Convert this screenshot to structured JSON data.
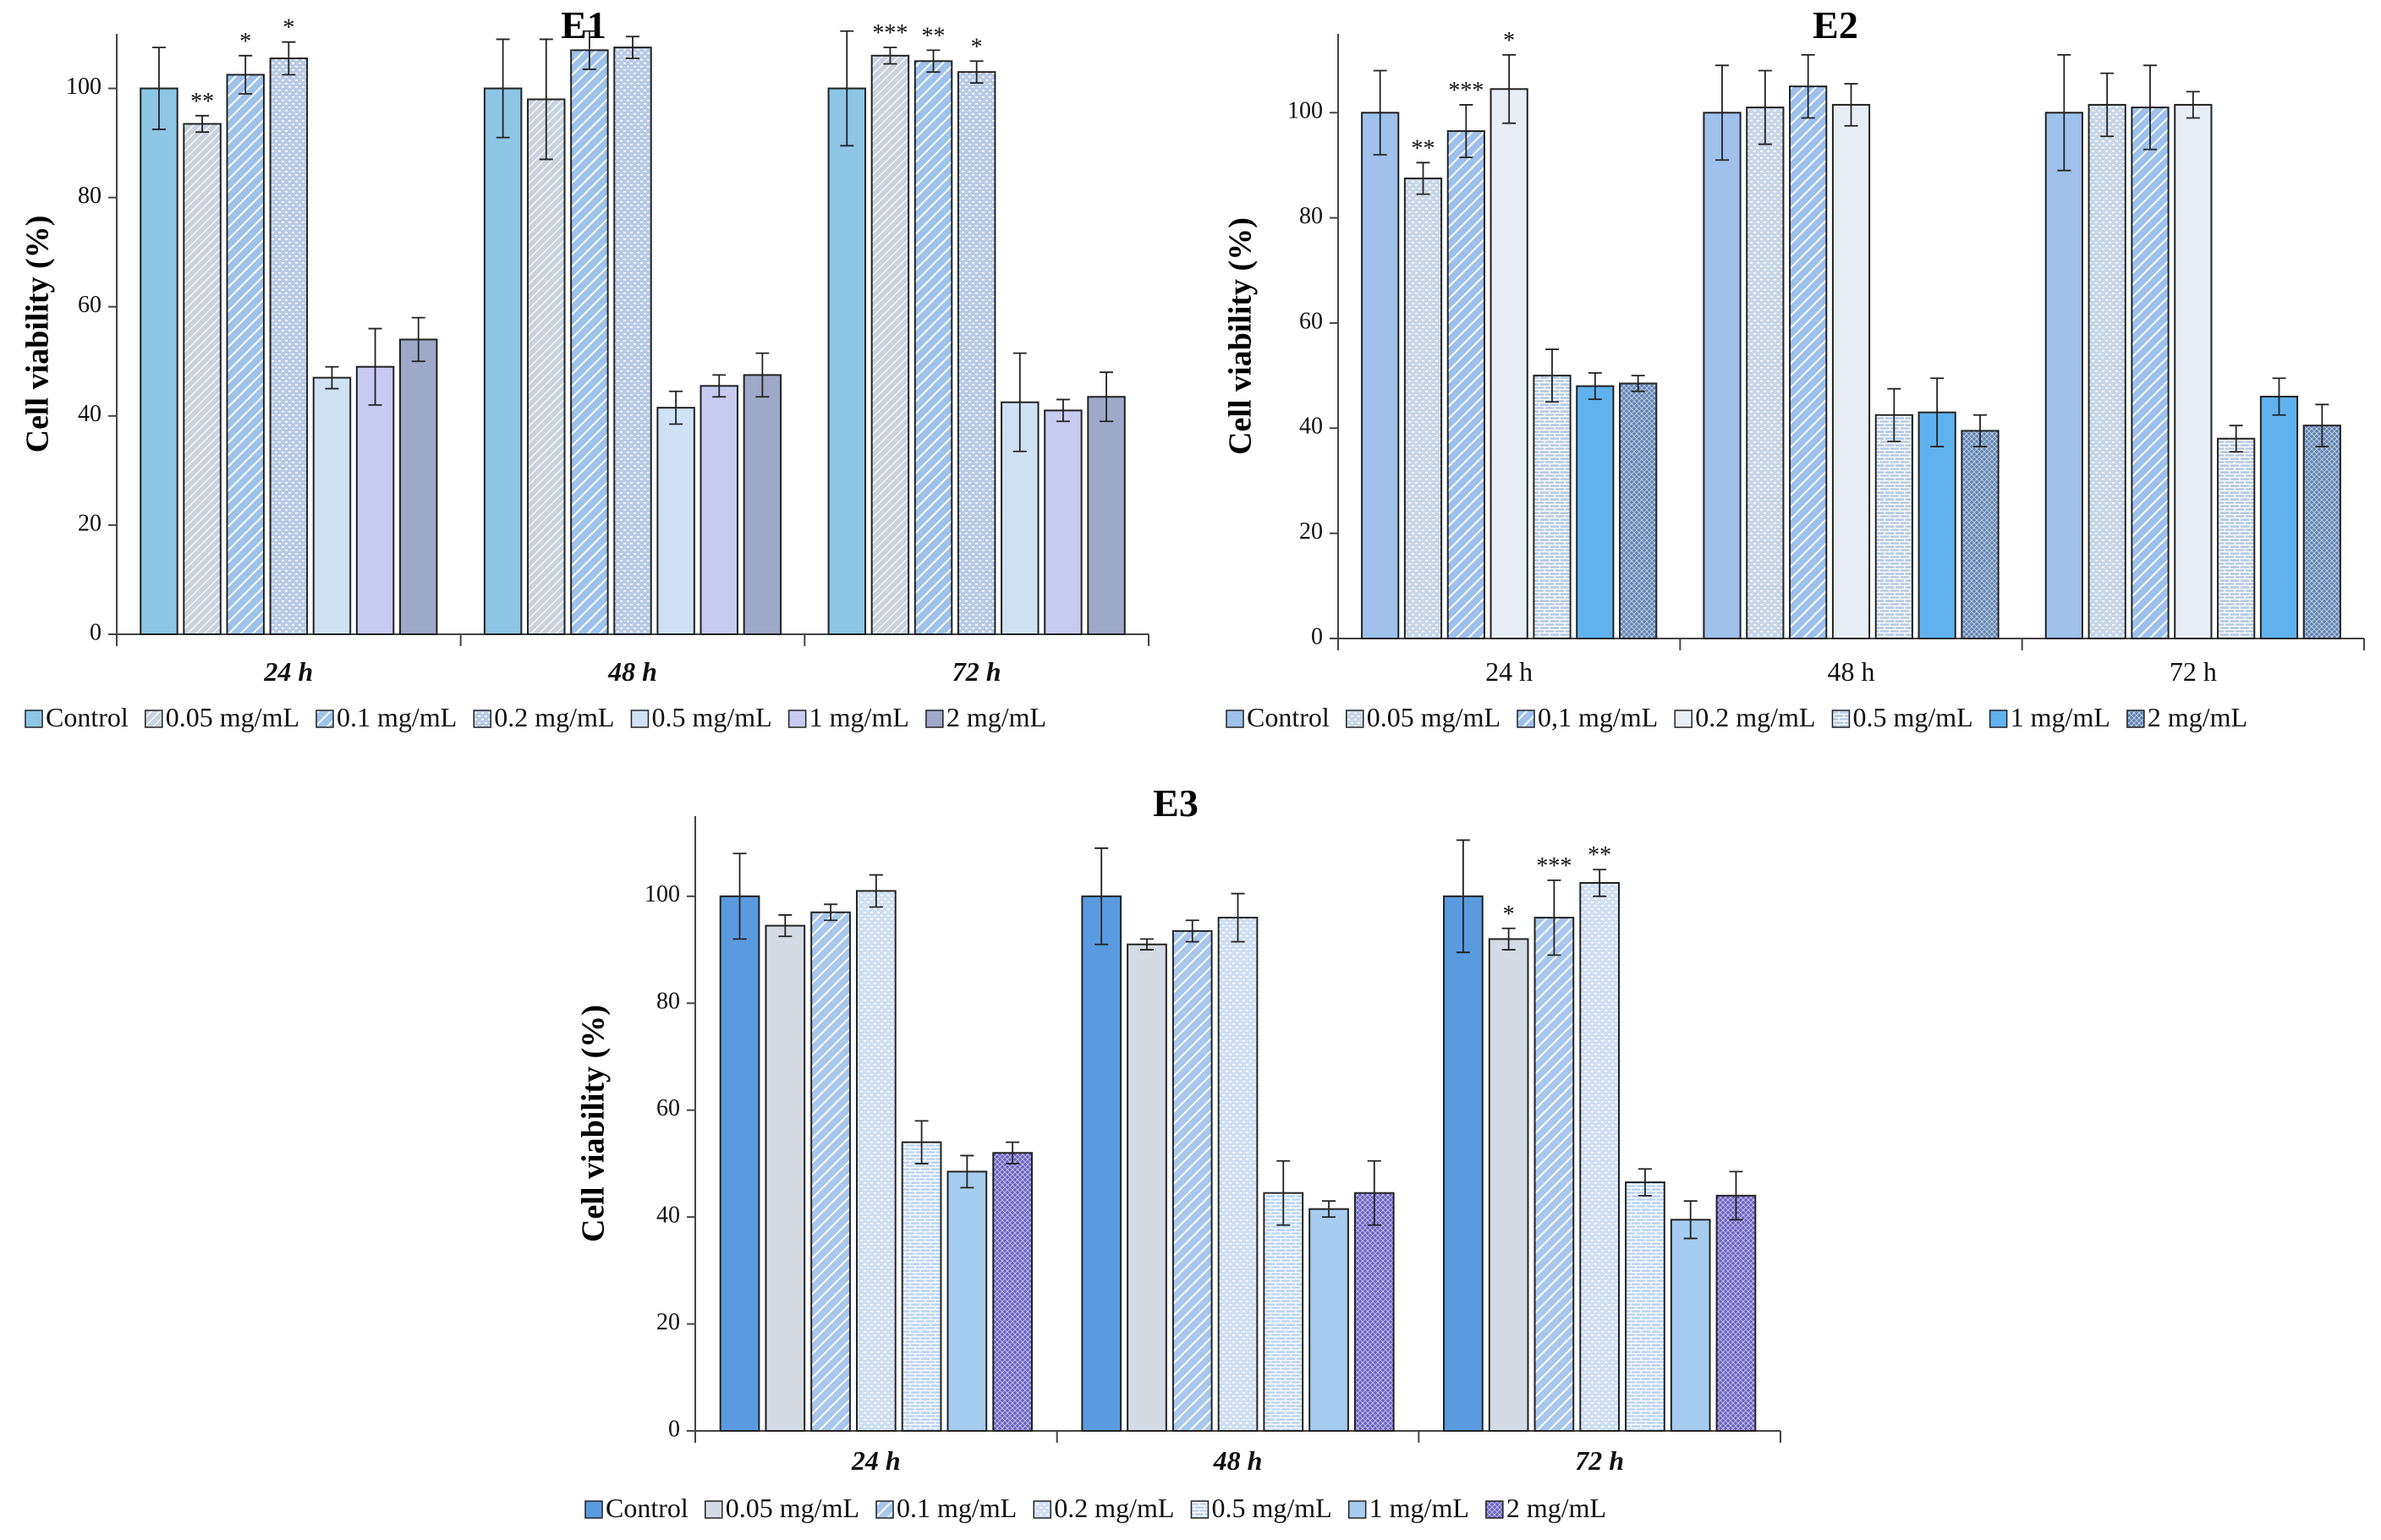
{
  "chart_data": [
    {
      "type": "bar",
      "title": "E1",
      "ylabel": "Cell viability (%)",
      "xlabel": "",
      "ylim": [
        0,
        110
      ],
      "yticks": [
        0,
        20,
        40,
        60,
        80,
        100
      ],
      "grid": false,
      "legend": "bottom",
      "italic_categories": true,
      "categories": [
        "24 h",
        "48 h",
        "72 h"
      ],
      "series": [
        {
          "name": "Control",
          "color": "#8ec6e6",
          "pattern": "solid",
          "values": [
            100,
            100,
            100
          ],
          "errors": [
            7.5,
            9,
            10.5
          ],
          "sig": [
            "",
            "",
            ""
          ]
        },
        {
          "name": "0.05 mg/mL",
          "color": "#c9d3df",
          "pattern": "diag",
          "values": [
            93.5,
            98,
            106
          ],
          "errors": [
            1.5,
            11,
            1.5
          ],
          "sig": [
            "**",
            "",
            "***"
          ]
        },
        {
          "name": "0.1 mg/mL",
          "color": "#9ec2ea",
          "pattern": "diag2",
          "values": [
            102.5,
            107,
            105
          ],
          "errors": [
            3.5,
            3.5,
            2
          ],
          "sig": [
            "*",
            "",
            "**"
          ]
        },
        {
          "name": "0.2 mg/mL",
          "color": "#b9cbe6",
          "pattern": "dots",
          "values": [
            105.5,
            107.5,
            103
          ],
          "errors": [
            3,
            2,
            2
          ],
          "sig": [
            "*",
            "",
            "*"
          ]
        },
        {
          "name": "0.5 mg/mL",
          "color": "#cfe2f5",
          "pattern": "solid",
          "values": [
            47,
            41.5,
            42.5
          ],
          "errors": [
            2,
            3,
            9
          ],
          "sig": [
            "",
            "",
            ""
          ]
        },
        {
          "name": "1 mg/mL",
          "color": "#c7cbf2",
          "pattern": "solid",
          "values": [
            49,
            45.5,
            41
          ],
          "errors": [
            7,
            2,
            2
          ],
          "sig": [
            "",
            "",
            ""
          ]
        },
        {
          "name": "2 mg/mL",
          "color": "#9ea8c8",
          "pattern": "solid",
          "values": [
            54,
            47.5,
            43.5
          ],
          "errors": [
            4,
            4,
            4.5
          ],
          "sig": [
            "",
            "",
            ""
          ]
        }
      ]
    },
    {
      "type": "bar",
      "title": "E2",
      "ylabel": "Cell viability (%)",
      "xlabel": "",
      "ylim": [
        0,
        115
      ],
      "yticks": [
        0,
        20,
        40,
        60,
        80,
        100
      ],
      "grid": false,
      "legend": "bottom",
      "italic_categories": false,
      "categories": [
        "24 h",
        "48 h",
        "72 h"
      ],
      "series": [
        {
          "name": "Control",
          "color": "#9fc1ec",
          "pattern": "solid",
          "values": [
            100,
            100,
            100
          ],
          "errors": [
            8,
            9,
            11
          ],
          "sig": [
            "",
            "",
            ""
          ]
        },
        {
          "name": "0.05 mg/mL",
          "color": "#c8d6e8",
          "pattern": "dots",
          "values": [
            87.5,
            101,
            101.5
          ],
          "errors": [
            3,
            7,
            6
          ],
          "sig": [
            "**",
            "",
            ""
          ]
        },
        {
          "name": "0,1 mg/mL",
          "color": "#9dc0ec",
          "pattern": "diag2",
          "values": [
            96.5,
            105,
            101
          ],
          "errors": [
            5,
            6,
            8
          ],
          "sig": [
            "***",
            "",
            ""
          ]
        },
        {
          "name": "0.2 mg/mL",
          "color": "#e8eef6",
          "pattern": "solid",
          "values": [
            104.5,
            101.5,
            101.5
          ],
          "errors": [
            6.5,
            4,
            2.5
          ],
          "sig": [
            "*",
            "",
            ""
          ]
        },
        {
          "name": "0.5 mg/mL",
          "color": "#b7cbe3",
          "pattern": "brick",
          "values": [
            50,
            42.5,
            38
          ],
          "errors": [
            5,
            5,
            2.5
          ],
          "sig": [
            "",
            "",
            ""
          ]
        },
        {
          "name": "1 mg/mL",
          "color": "#5fb2ee",
          "pattern": "solid",
          "values": [
            48,
            43,
            46
          ],
          "errors": [
            2.5,
            6.5,
            3.5
          ],
          "sig": [
            "",
            "",
            ""
          ]
        },
        {
          "name": "2 mg/mL",
          "color": "#5f82b3",
          "pattern": "cross",
          "values": [
            48.5,
            39.5,
            40.5
          ],
          "errors": [
            1.5,
            3,
            4
          ],
          "sig": [
            "",
            "",
            ""
          ]
        }
      ]
    },
    {
      "type": "bar",
      "title": "E3",
      "ylabel": "Cell viability (%)",
      "xlabel": "",
      "ylim": [
        0,
        115
      ],
      "yticks": [
        0,
        20,
        40,
        60,
        80,
        100
      ],
      "grid": false,
      "legend": "bottom",
      "italic_categories": true,
      "categories": [
        "24 h",
        "48 h",
        "72 h"
      ],
      "series": [
        {
          "name": "Control",
          "color": "#5a9be0",
          "pattern": "solid",
          "values": [
            100,
            100,
            100
          ],
          "errors": [
            8,
            9,
            10.5
          ],
          "sig": [
            "",
            "",
            ""
          ]
        },
        {
          "name": "0.05 mg/mL",
          "color": "#d5dbe4",
          "pattern": "solid",
          "values": [
            94.5,
            91,
            92
          ],
          "errors": [
            2,
            1,
            2
          ],
          "sig": [
            "",
            "",
            "*"
          ]
        },
        {
          "name": "0.1 mg/mL",
          "color": "#a9c6ec",
          "pattern": "diag2",
          "values": [
            97,
            93.5,
            96
          ],
          "errors": [
            1.5,
            2,
            7
          ],
          "sig": [
            "",
            "",
            "***"
          ]
        },
        {
          "name": "0.2 mg/mL",
          "color": "#cfdff2",
          "pattern": "dots",
          "values": [
            101,
            96,
            102.5
          ],
          "errors": [
            3,
            4.5,
            2.5
          ],
          "sig": [
            "",
            "",
            "**"
          ]
        },
        {
          "name": "0.5 mg/mL",
          "color": "#bcd5f3",
          "pattern": "brick",
          "values": [
            54,
            44.5,
            46.5
          ],
          "errors": [
            4,
            6,
            2.5
          ],
          "sig": [
            "",
            "",
            ""
          ]
        },
        {
          "name": "1 mg/mL",
          "color": "#a6ccef",
          "pattern": "solid",
          "values": [
            48.5,
            41.5,
            39.5
          ],
          "errors": [
            3,
            1.5,
            3.5
          ],
          "sig": [
            "",
            "",
            ""
          ]
        },
        {
          "name": "2 mg/mL",
          "color": "#6a60c4",
          "pattern": "cross",
          "values": [
            52,
            44.5,
            44
          ],
          "errors": [
            2,
            6,
            4.5
          ],
          "sig": [
            "",
            "",
            ""
          ]
        }
      ]
    }
  ]
}
